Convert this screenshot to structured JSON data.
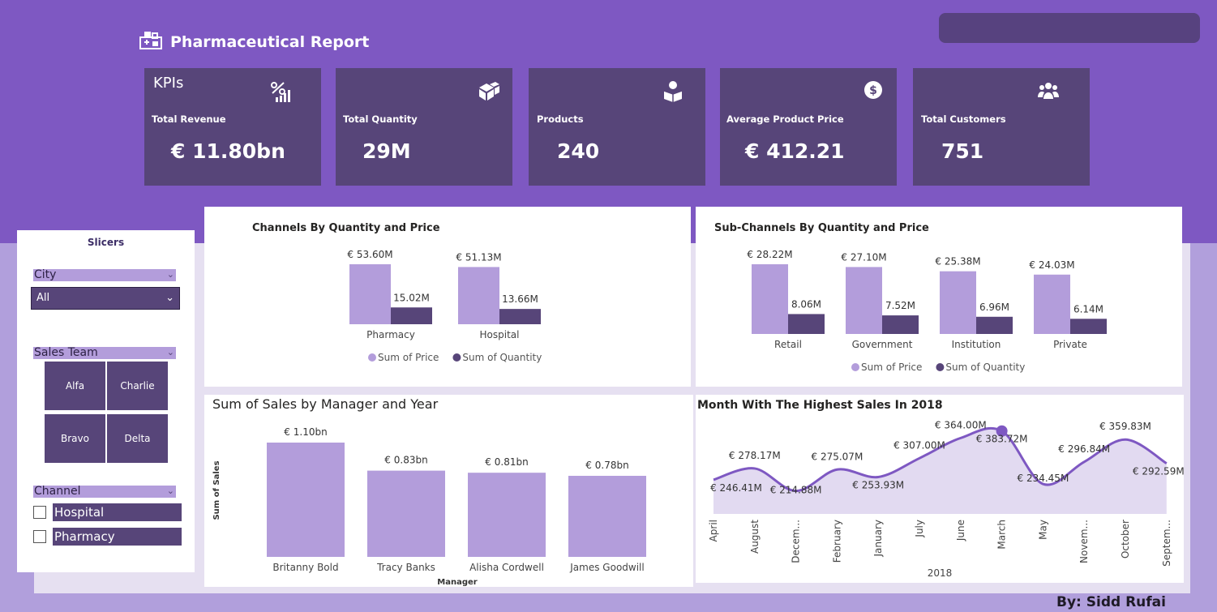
{
  "header": {
    "title": "Pharmaceutical Report",
    "byline": "By: Sidd Rufai"
  },
  "kpis": {
    "heading": "KPIs",
    "cards": [
      {
        "label": "Total Revenue",
        "value": "€ 11.80bn",
        "icon": "percent-growth-icon"
      },
      {
        "label": "Total Quantity",
        "value": "29M",
        "icon": "boxes-icon"
      },
      {
        "label": "Products",
        "value": "240",
        "icon": "product-box-icon"
      },
      {
        "label": "Average Product Price",
        "value": "€ 412.21",
        "icon": "dollar-coin-icon"
      },
      {
        "label": "Total Customers",
        "value": "751",
        "icon": "people-group-icon"
      }
    ]
  },
  "slicers": {
    "title": "Slicers",
    "city": {
      "label": "City",
      "selected": "All"
    },
    "sales_team": {
      "label": "Sales Team",
      "options": [
        "Alfa",
        "Charlie",
        "Bravo",
        "Delta"
      ]
    },
    "channel": {
      "label": "Channel",
      "options": [
        "Hospital",
        "Pharmacy"
      ]
    }
  },
  "colors": {
    "light": "#b39ddb",
    "dark": "#574579",
    "accent": "#7e58c2"
  },
  "chart_data": [
    {
      "type": "bar",
      "title": "Channels By Quantity and Price",
      "categories": [
        "Pharmacy",
        "Hospital"
      ],
      "series": [
        {
          "name": "Sum of Price",
          "values": [
            53.6,
            51.13
          ],
          "labels": [
            "€ 53.60M",
            "€ 51.13M"
          ]
        },
        {
          "name": "Sum of Quantity",
          "values": [
            15.02,
            13.66
          ],
          "labels": [
            "15.02M",
            "13.66M"
          ]
        }
      ],
      "legend": "bottom-center"
    },
    {
      "type": "bar",
      "title": "Sub-Channels By Quantity and Price",
      "categories": [
        "Retail",
        "Government",
        "Institution",
        "Private"
      ],
      "series": [
        {
          "name": "Sum of Price",
          "values": [
            28.22,
            27.1,
            25.38,
            24.03
          ],
          "labels": [
            "€ 28.22M",
            "€ 27.10M",
            "€ 25.38M",
            "€ 24.03M"
          ]
        },
        {
          "name": "Sum of Quantity",
          "values": [
            8.06,
            7.52,
            6.96,
            6.14
          ],
          "labels": [
            "8.06M",
            "7.52M",
            "6.96M",
            "6.14M"
          ]
        }
      ],
      "legend": "bottom-center"
    },
    {
      "type": "bar",
      "title": "Sum of Sales by Manager and Year",
      "xlabel": "Manager",
      "ylabel": "Sum of Sales",
      "categories": [
        "Britanny Bold",
        "Tracy Banks",
        "Alisha Cordwell",
        "James Goodwill"
      ],
      "values": [
        1.1,
        0.83,
        0.81,
        0.78
      ],
      "labels": [
        "€ 1.10bn",
        "€ 0.83bn",
        "€ 0.81bn",
        "€ 0.78bn"
      ]
    },
    {
      "type": "area",
      "title": "Month With The Highest Sales In 2018",
      "xlabel": "2018",
      "categories": [
        "April",
        "August",
        "Decem...",
        "February",
        "January",
        "July",
        "June",
        "March",
        "May",
        "Novem...",
        "October",
        "Septem..."
      ],
      "values": [
        246.41,
        278.17,
        214.88,
        275.07,
        253.93,
        307.0,
        364.0,
        383.72,
        234.45,
        296.84,
        359.83,
        292.59
      ],
      "labels": [
        "€ 246.41M",
        "€ 278.17M",
        "€ 214.88M",
        "€ 275.07M",
        "€ 253.93M",
        "€ 307.00M",
        "€ 364.00M",
        "€ 383.72M",
        "€ 234.45M",
        "€ 296.84M",
        "€ 359.83M",
        "€ 292.59M"
      ],
      "highlight": "March"
    }
  ]
}
